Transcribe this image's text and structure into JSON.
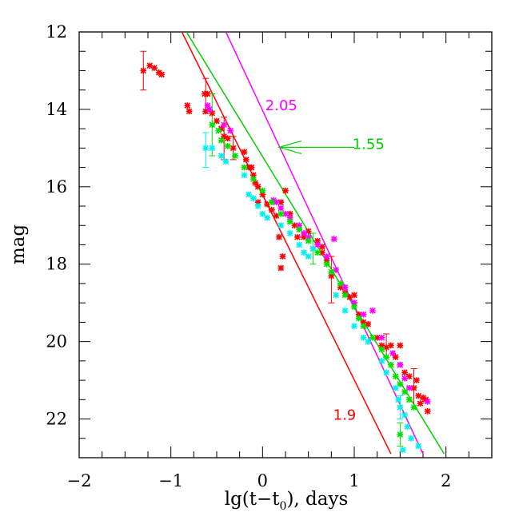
{
  "chart_data": {
    "type": "scatter",
    "xlabel_main": "lg(t−t",
    "xlabel_sub": "0",
    "xlabel_tail": "), days",
    "ylabel": "mag",
    "xlim": [
      -2,
      2.5
    ],
    "ylim": [
      23,
      12
    ],
    "y_inverted": true,
    "grid": false,
    "x_ticks": [
      -2,
      -1,
      0,
      1,
      2
    ],
    "y_ticks": [
      12,
      14,
      16,
      18,
      20,
      22
    ],
    "x_tick_labels": [
      "−2",
      "−1",
      "0",
      "1",
      "2"
    ],
    "y_tick_labels": [
      "12",
      "14",
      "16",
      "18",
      "20",
      "22"
    ],
    "colors": {
      "red": "#ff0000",
      "magenta": "#ff00ff",
      "green": "#00e000",
      "cyan": "#00f0f0",
      "arrow": "#00d000"
    },
    "lines": [
      {
        "label": "1.9",
        "color": "#ff0000",
        "x": [
          -0.88,
          1.4
        ],
        "y": [
          12.0,
          22.9
        ]
      },
      {
        "label": "1.55",
        "color": "#00d000",
        "x": [
          -0.83,
          1.98
        ],
        "y": [
          12.0,
          22.9
        ]
      },
      {
        "label": "2.05",
        "color": "#ff00ff",
        "x": [
          -0.4,
          1.75
        ],
        "y": [
          12.0,
          22.9
        ]
      }
    ],
    "annotations": [
      {
        "text": "2.05",
        "color": "#ff00ff",
        "x": 0.03,
        "y": 13.9
      },
      {
        "text": "1.55",
        "color": "#00d000",
        "x": 0.98,
        "y": 14.9
      },
      {
        "text": "1.9",
        "color": "#ff0000",
        "x": 0.77,
        "y": 21.9
      }
    ],
    "arrow": {
      "from": [
        1.0,
        14.98
      ],
      "to": [
        0.18,
        14.98
      ],
      "color": "#00d000"
    },
    "series": [
      {
        "color": "#ff0000",
        "points": [
          [
            -1.3,
            13.0
          ],
          [
            -1.23,
            12.87
          ],
          [
            -1.18,
            12.93
          ],
          [
            -1.13,
            13.05
          ],
          [
            -1.1,
            13.1
          ],
          [
            -0.82,
            13.9
          ],
          [
            -0.8,
            14.05
          ],
          [
            -0.63,
            13.6
          ],
          [
            -0.6,
            13.6
          ],
          [
            -0.62,
            14.05
          ],
          [
            -0.55,
            14.1
          ],
          [
            -0.5,
            14.3
          ],
          [
            -0.45,
            14.5
          ],
          [
            -0.42,
            14.7
          ],
          [
            -0.38,
            14.75
          ],
          [
            -0.32,
            15.0
          ],
          [
            -0.2,
            15.1
          ],
          [
            -0.18,
            15.3
          ],
          [
            -0.15,
            15.5
          ],
          [
            -0.12,
            15.5
          ],
          [
            -0.1,
            15.7
          ],
          [
            -0.08,
            15.9
          ],
          [
            -0.05,
            16.0
          ],
          [
            0.0,
            16.2
          ],
          [
            0.05,
            16.45
          ],
          [
            0.1,
            16.6
          ],
          [
            0.15,
            16.75
          ],
          [
            0.2,
            16.4
          ],
          [
            0.25,
            16.1
          ],
          [
            0.3,
            16.7
          ],
          [
            0.35,
            17.0
          ],
          [
            0.38,
            17.3
          ],
          [
            0.4,
            17.1
          ],
          [
            0.45,
            17.3
          ],
          [
            0.5,
            17.15
          ],
          [
            0.55,
            17.6
          ],
          [
            0.6,
            17.4
          ],
          [
            0.65,
            17.7
          ],
          [
            0.7,
            17.9
          ],
          [
            0.75,
            18.3
          ],
          [
            0.85,
            18.6
          ],
          [
            0.9,
            18.75
          ],
          [
            0.95,
            18.85
          ],
          [
            1.0,
            19.0
          ],
          [
            1.05,
            19.3
          ],
          [
            1.1,
            19.5
          ],
          [
            1.15,
            19.55
          ],
          [
            1.25,
            19.9
          ],
          [
            1.3,
            20.1
          ],
          [
            1.35,
            20.15
          ],
          [
            1.4,
            20.1
          ],
          [
            1.45,
            20.4
          ],
          [
            1.5,
            20.6
          ],
          [
            1.55,
            20.8
          ],
          [
            1.6,
            20.9
          ],
          [
            1.65,
            21.2
          ],
          [
            1.7,
            21.4
          ],
          [
            1.72,
            21.6
          ],
          [
            1.75,
            21.45
          ],
          [
            1.78,
            21.5
          ],
          [
            1.8,
            21.8
          ],
          [
            0.18,
            17.3
          ],
          [
            0.22,
            17.8
          ],
          [
            0.2,
            18.1
          ],
          [
            -0.05,
            16.4
          ],
          [
            0.65,
            17.55
          ],
          [
            1.0,
            18.8
          ],
          [
            1.5,
            20.1
          ],
          [
            1.68,
            21.0
          ]
        ]
      },
      {
        "color": "#ff00ff",
        "points": [
          [
            -0.6,
            13.9
          ],
          [
            -0.58,
            14.0
          ],
          [
            -0.42,
            14.4
          ],
          [
            -0.35,
            14.55
          ],
          [
            0.12,
            16.35
          ],
          [
            0.15,
            16.4
          ],
          [
            0.2,
            16.55
          ],
          [
            0.25,
            16.7
          ],
          [
            0.3,
            16.8
          ],
          [
            0.4,
            17.0
          ],
          [
            0.45,
            17.2
          ],
          [
            0.5,
            17.3
          ],
          [
            0.6,
            17.5
          ],
          [
            0.7,
            17.8
          ],
          [
            0.8,
            18.15
          ],
          [
            0.9,
            18.6
          ],
          [
            1.0,
            19.0
          ],
          [
            1.1,
            19.3
          ],
          [
            1.2,
            19.2
          ],
          [
            1.3,
            19.9
          ],
          [
            1.42,
            20.3
          ],
          [
            1.5,
            20.6
          ],
          [
            1.55,
            20.95
          ],
          [
            1.6,
            21.2
          ],
          [
            1.8,
            21.55
          ],
          [
            0.78,
            17.35
          ]
        ]
      },
      {
        "color": "#00e000",
        "points": [
          [
            -0.55,
            14.4
          ],
          [
            -0.48,
            14.55
          ],
          [
            -0.45,
            14.8
          ],
          [
            -0.38,
            14.95
          ],
          [
            -0.3,
            15.2
          ],
          [
            -0.2,
            15.5
          ],
          [
            -0.1,
            15.8
          ],
          [
            0.0,
            16.1
          ],
          [
            0.1,
            16.4
          ],
          [
            0.2,
            16.7
          ],
          [
            0.3,
            16.9
          ],
          [
            0.4,
            17.1
          ],
          [
            0.5,
            17.4
          ],
          [
            0.6,
            17.7
          ],
          [
            0.7,
            18.0
          ],
          [
            0.75,
            18.2
          ],
          [
            0.85,
            18.5
          ],
          [
            0.9,
            18.8
          ],
          [
            1.0,
            19.1
          ],
          [
            1.05,
            19.4
          ],
          [
            1.1,
            19.6
          ],
          [
            1.2,
            19.9
          ],
          [
            1.3,
            20.2
          ],
          [
            1.35,
            20.4
          ],
          [
            1.4,
            20.6
          ],
          [
            1.45,
            20.9
          ],
          [
            1.5,
            21.1
          ],
          [
            1.55,
            21.3
          ],
          [
            1.6,
            21.5
          ],
          [
            1.65,
            21.7
          ],
          [
            1.5,
            22.4
          ]
        ]
      },
      {
        "color": "#00f0f0",
        "points": [
          [
            -0.62,
            15.0
          ],
          [
            -0.55,
            15.0
          ],
          [
            -0.45,
            15.2
          ],
          [
            -0.4,
            15.35
          ],
          [
            -0.2,
            15.7
          ],
          [
            -0.15,
            16.2
          ],
          [
            -0.1,
            16.3
          ],
          [
            -0.05,
            16.5
          ],
          [
            0.0,
            16.7
          ],
          [
            0.05,
            16.8
          ],
          [
            0.2,
            17.0
          ],
          [
            0.3,
            17.2
          ],
          [
            0.4,
            17.5
          ],
          [
            0.45,
            17.7
          ],
          [
            0.5,
            17.8
          ],
          [
            0.55,
            17.6
          ],
          [
            0.8,
            18.8
          ],
          [
            0.9,
            19.2
          ],
          [
            1.0,
            19.6
          ],
          [
            1.1,
            19.9
          ],
          [
            1.15,
            20.0
          ],
          [
            1.3,
            20.5
          ],
          [
            1.35,
            20.8
          ],
          [
            1.45,
            21.2
          ],
          [
            1.48,
            21.5
          ],
          [
            1.5,
            21.7
          ],
          [
            1.55,
            21.9
          ],
          [
            1.58,
            22.2
          ],
          [
            1.62,
            22.5
          ],
          [
            1.7,
            22.7
          ],
          [
            1.53,
            22.8
          ]
        ]
      }
    ],
    "errorbars": [
      {
        "color": "#ff0000",
        "x": -1.3,
        "y": 13.0,
        "lo": 12.5,
        "hi": 13.5
      },
      {
        "color": "#ff0000",
        "x": -0.62,
        "y": 13.6,
        "lo": 13.2,
        "hi": 14.1
      },
      {
        "color": "#00e000",
        "x": -0.55,
        "y": 14.4,
        "lo": 13.6,
        "hi": 15.2
      },
      {
        "color": "#ff0000",
        "x": -0.42,
        "y": 14.7,
        "lo": 14.2,
        "hi": 15.3
      },
      {
        "color": "#00f0f0",
        "x": -0.62,
        "y": 15.0,
        "lo": 14.6,
        "hi": 15.5
      },
      {
        "color": "#ff0000",
        "x": -0.32,
        "y": 15.0,
        "lo": 14.7,
        "hi": 15.3
      },
      {
        "color": "#00e000",
        "x": 0.55,
        "y": 17.6,
        "lo": 17.2,
        "hi": 18.0
      },
      {
        "color": "#ff0000",
        "x": 0.75,
        "y": 18.3,
        "lo": 17.8,
        "hi": 19.0
      },
      {
        "color": "#ff0000",
        "x": 1.35,
        "y": 20.1,
        "lo": 19.8,
        "hi": 20.4
      },
      {
        "color": "#ff0000",
        "x": 1.65,
        "y": 21.2,
        "lo": 20.7,
        "hi": 21.7
      },
      {
        "color": "#00f0f0",
        "x": 1.5,
        "y": 21.7,
        "lo": 21.4,
        "hi": 22.0
      },
      {
        "color": "#00e000",
        "x": 1.5,
        "y": 22.4,
        "lo": 22.1,
        "hi": 22.7
      }
    ]
  }
}
